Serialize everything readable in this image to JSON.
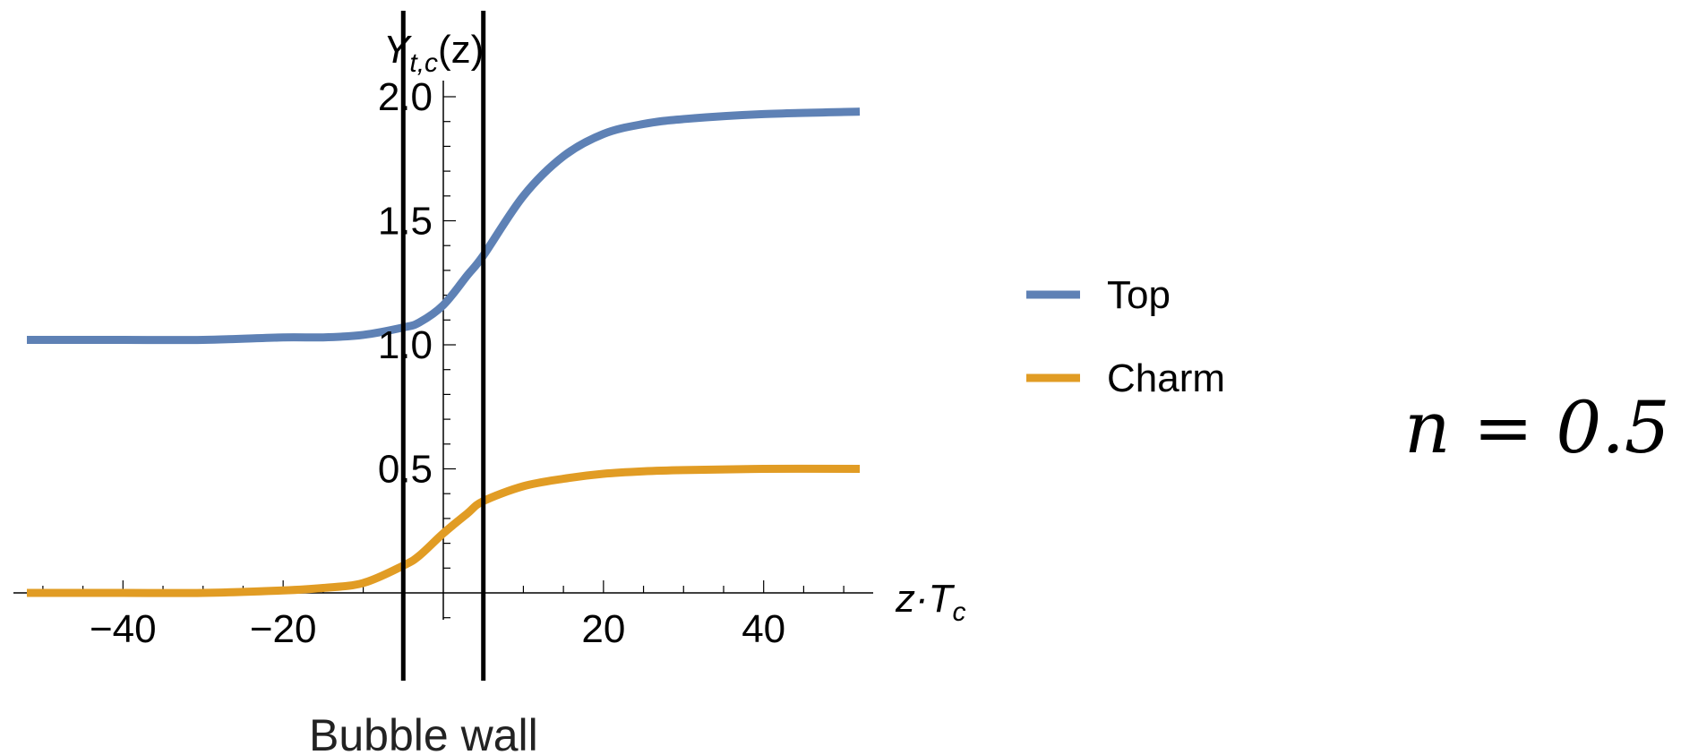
{
  "chart_data": {
    "type": "line",
    "ylabel_main": "Y",
    "ylabel_sub": "t,c",
    "ylabel_arg": "(z)",
    "xlabel_main": "z·T",
    "xlabel_sub": "c",
    "xlim": [
      -52,
      52
    ],
    "ylim": [
      -0.1,
      2.0
    ],
    "x_ticks": [
      -40,
      -20,
      20,
      40
    ],
    "x_tick_labels": [
      "−40",
      "−20",
      "20",
      "40"
    ],
    "y_ticks": [
      0.5,
      1.0,
      1.5,
      2.0
    ],
    "y_tick_labels": [
      "0.5",
      "1.0",
      "1.5",
      "2.0"
    ],
    "series": [
      {
        "name": "Top",
        "color": "#5E81B5",
        "x": [
          -52,
          -40,
          -30,
          -20,
          -15,
          -10,
          -5,
          -3,
          0,
          3,
          5,
          10,
          15,
          20,
          25,
          30,
          40,
          52
        ],
        "y": [
          1.02,
          1.02,
          1.02,
          1.03,
          1.03,
          1.04,
          1.07,
          1.09,
          1.16,
          1.28,
          1.36,
          1.6,
          1.76,
          1.85,
          1.89,
          1.91,
          1.93,
          1.94
        ]
      },
      {
        "name": "Charm",
        "color": "#E19C24",
        "x": [
          -52,
          -40,
          -30,
          -20,
          -15,
          -10,
          -5,
          -3,
          0,
          3,
          5,
          10,
          15,
          20,
          25,
          30,
          40,
          52
        ],
        "y": [
          0.0,
          0.0,
          0.0,
          0.01,
          0.02,
          0.04,
          0.11,
          0.15,
          0.24,
          0.32,
          0.37,
          0.43,
          0.46,
          0.48,
          0.49,
          0.495,
          0.5,
          0.5
        ]
      }
    ],
    "vertical_lines_x": [
      -5,
      5
    ],
    "annotation": "Bubble wall",
    "legend_position": "right"
  },
  "side_label": "n = 0.5"
}
